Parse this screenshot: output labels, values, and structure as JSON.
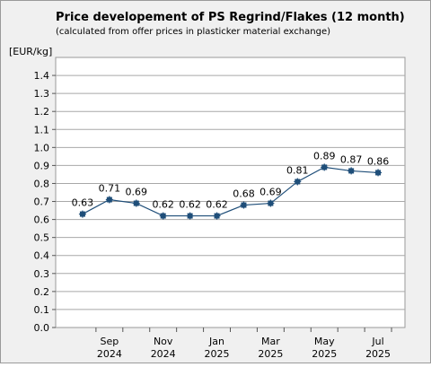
{
  "chart_data": {
    "type": "line",
    "title": "Price developement of PS Regrind/Flakes (12 month)",
    "subtitle": "(calculated from offer prices in plasticker material exchange)",
    "ylabel": "[EUR/kg]",
    "ylim": [
      0,
      1.5
    ],
    "yticks": [
      "0.0",
      "0.1",
      "0.2",
      "0.3",
      "0.4",
      "0.5",
      "0.6",
      "0.7",
      "0.8",
      "0.9",
      "1.0",
      "1.1",
      "1.2",
      "1.3",
      "1.4"
    ],
    "xtick_labels": [
      {
        "month": "Sep",
        "year": "2024"
      },
      {
        "month": "Nov",
        "year": "2024"
      },
      {
        "month": "Jan",
        "year": "2025"
      },
      {
        "month": "Mar",
        "year": "2025"
      },
      {
        "month": "May",
        "year": "2025"
      },
      {
        "month": "Jul",
        "year": "2025"
      }
    ],
    "grid": true,
    "series": [
      {
        "x": [
          "2024-08",
          "2024-09",
          "2024-10",
          "2024-11",
          "2024-12",
          "2025-01",
          "2025-02",
          "2025-03",
          "2025-04",
          "2025-05",
          "2025-06",
          "2025-07"
        ],
        "values": [
          0.63,
          0.71,
          0.69,
          0.62,
          0.62,
          0.62,
          0.68,
          0.69,
          0.81,
          0.89,
          0.87,
          0.86
        ],
        "labels": [
          "0.63",
          "0.71",
          "0.69",
          "0.62",
          "0.62",
          "0.62",
          "0.68",
          "0.69",
          "0.81",
          "0.89",
          "0.87",
          "0.86"
        ],
        "color": "#1f4e79"
      }
    ]
  }
}
